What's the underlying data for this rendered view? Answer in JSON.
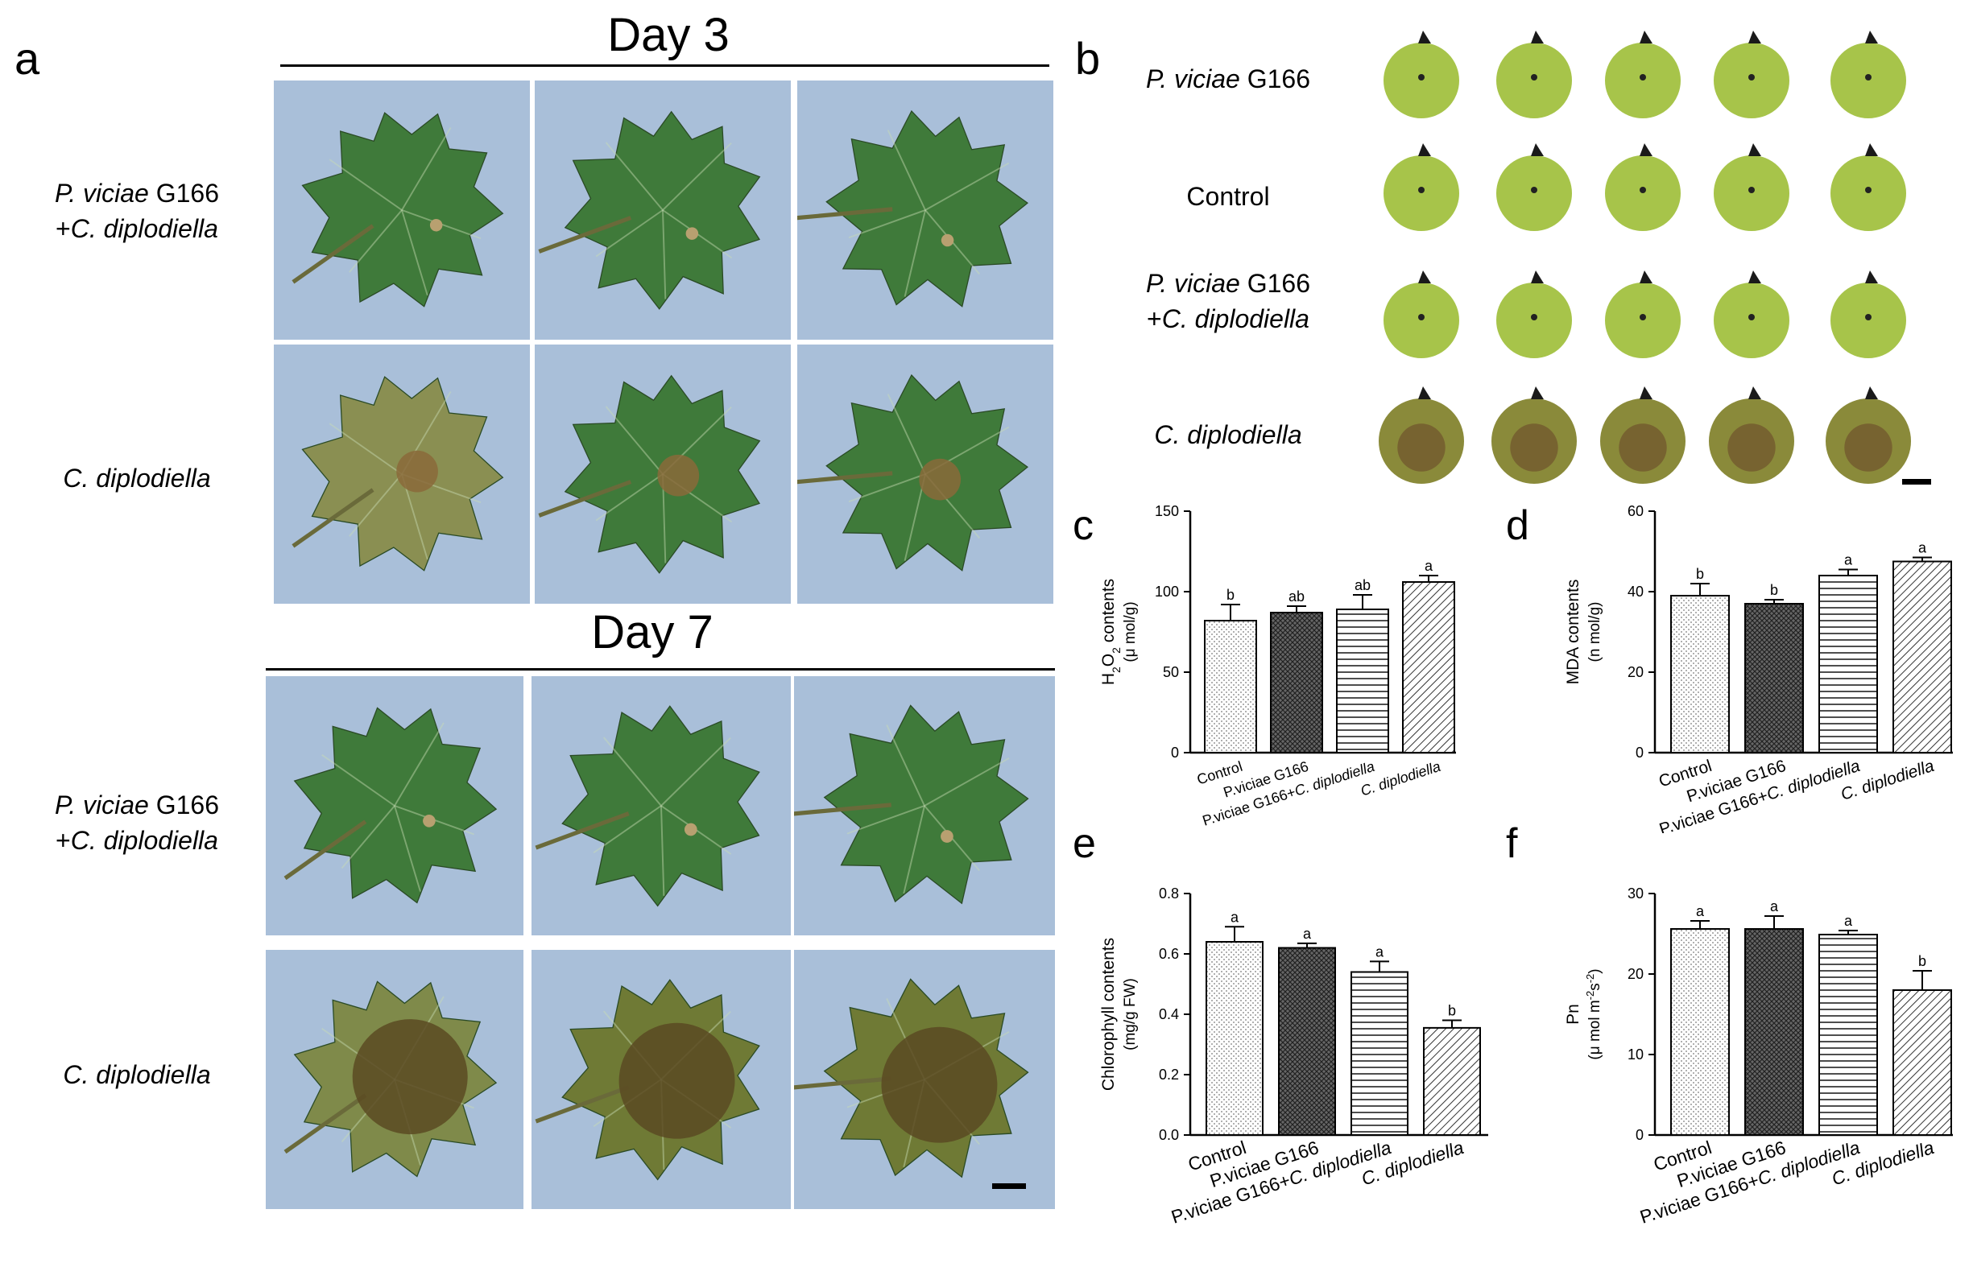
{
  "figure": {
    "panel_a": {
      "letter": "a",
      "day3_title": "Day 3",
      "day7_title": "Day 7",
      "rows": [
        {
          "line1_italic": "P. viciae",
          "line1_rest": " G166",
          "line2_plus": "+",
          "line2_italic": "C. diplodiella"
        },
        {
          "line1_italic": "C. diplodiella"
        },
        {
          "line1_italic": "P. viciae",
          "line1_rest": " G166",
          "line2_plus": "+",
          "line2_italic": "C. diplodiella"
        },
        {
          "line1_italic": "C. diplodiella"
        }
      ],
      "photo_colors": {
        "background": "#a9bfd9",
        "healthy_leaf": "#3f7a3a",
        "infected_leaf": "#8a8f52",
        "lesion": "#8a6a3a"
      }
    },
    "panel_b": {
      "letter": "b",
      "rows": [
        {
          "italic": "P. viciae",
          "rest": " G166"
        },
        {
          "rest": "Control"
        },
        {
          "italic": "P. viciae",
          "rest": " G166",
          "line2_plus": "+",
          "line2_italic": "C. diplodiella"
        },
        {
          "italic": "C. diplodiella"
        }
      ],
      "berry_colors": {
        "healthy": "#a7c44a",
        "infected": "#8a8a3a",
        "stem": "#1a1a1a"
      }
    }
  },
  "chart_data": [
    {
      "panel": "c",
      "type": "bar",
      "categories": [
        "Control",
        "P.viciae G166",
        "P.viciae G166+C. diplodiella",
        "C. diplodiella"
      ],
      "values": [
        82,
        87,
        89,
        106
      ],
      "errors": [
        10,
        4,
        9,
        4
      ],
      "letters": [
        "b",
        "ab",
        "ab",
        "a"
      ],
      "ylabel_parts": [
        "H",
        "2",
        "O",
        "2",
        " contents"
      ],
      "ylabel_unit": "(μ mol/g)",
      "ylim": [
        0,
        150
      ],
      "yticks": [
        "0",
        "50",
        "100",
        "150"
      ],
      "patterns": [
        "dots",
        "crosshatch",
        "horizontal",
        "diagonal"
      ]
    },
    {
      "panel": "d",
      "type": "bar",
      "categories": [
        "Control",
        "P.viciae G166",
        "P.viciae G166+C. diplodiella",
        "C. diplodiella"
      ],
      "values": [
        39,
        37,
        44,
        47.5
      ],
      "errors": [
        3,
        1,
        1.5,
        1
      ],
      "letters": [
        "b",
        "b",
        "a",
        "a"
      ],
      "ylabel": "MDA contents",
      "ylabel_unit": "(n mol/g)",
      "ylim": [
        0,
        60
      ],
      "yticks": [
        "0",
        "20",
        "40",
        "60"
      ],
      "patterns": [
        "dots",
        "crosshatch",
        "horizontal",
        "diagonal"
      ]
    },
    {
      "panel": "e",
      "type": "bar",
      "categories": [
        "Control",
        "P.viciae G166",
        "P.viciae G166+C. diplodiella",
        "C. diplodiella"
      ],
      "values": [
        0.64,
        0.62,
        0.54,
        0.355
      ],
      "errors": [
        0.05,
        0.015,
        0.035,
        0.025
      ],
      "letters": [
        "a",
        "a",
        "a",
        "b"
      ],
      "ylabel": "Chlorophyll contents",
      "ylabel_unit": "(mg/g FW)",
      "ylim": [
        0,
        0.8
      ],
      "yticks": [
        "0.0",
        "0.2",
        "0.4",
        "0.6",
        "0.8"
      ],
      "patterns": [
        "dots",
        "crosshatch",
        "horizontal",
        "diagonal"
      ]
    },
    {
      "panel": "f",
      "type": "bar",
      "categories": [
        "Control",
        "P.viciae G166",
        "P.viciae G166+C. diplodiella",
        "C. diplodiella"
      ],
      "values": [
        25.6,
        25.6,
        24.9,
        18
      ],
      "errors": [
        1,
        1.6,
        0.5,
        2.4
      ],
      "letters": [
        "a",
        "a",
        "a",
        "b"
      ],
      "ylabel": "Pn",
      "ylabel_unit_parts": [
        "(μ mol m",
        "-2",
        "s",
        "-2",
        ")"
      ],
      "ylim": [
        0,
        30
      ],
      "yticks": [
        "0",
        "10",
        "20",
        "30"
      ],
      "patterns": [
        "dots",
        "crosshatch",
        "horizontal",
        "diagonal"
      ]
    }
  ]
}
